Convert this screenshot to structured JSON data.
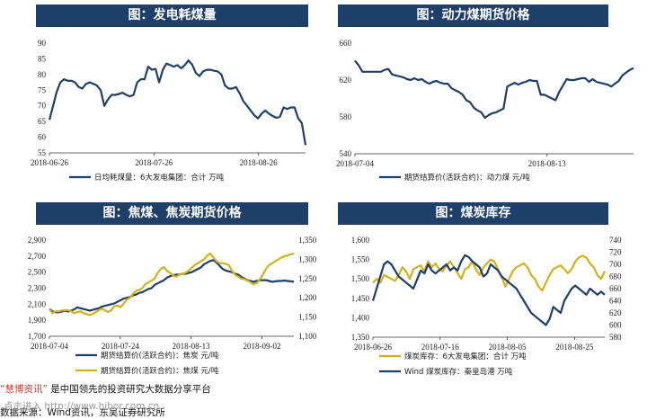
{
  "colors": {
    "navy": "#1f3f6b",
    "gold": "#d4b11a",
    "title_bg": "#1f3f6b"
  },
  "footer": {
    "brand": "“慧博资讯”",
    "text": " 是中国领先的投资研究大数据分享平台",
    "line2": "数据来源：Wind资讯，东吴证券研究所",
    "overlay": "点击进入 http://www.hibor.com.cn"
  },
  "chart_data": [
    {
      "type": "line",
      "title": "图：发电耗煤量",
      "x_ticks": [
        "2018-06-26",
        "2018-07-26",
        "2018-08-26"
      ],
      "y_ticks": [
        "55",
        "60",
        "65",
        "70",
        "75",
        "80",
        "85",
        "90"
      ],
      "ylim": [
        55,
        90
      ],
      "series": [
        {
          "name": "日均耗煤量：6大发电集团：合计  万吨",
          "color": "#1f3f6b",
          "axis": "left",
          "values": [
            65.5,
            70,
            74.5,
            77.5,
            78.5,
            78,
            78,
            77.5,
            76,
            75.5,
            77,
            77.5,
            77,
            76.5,
            75,
            70,
            72,
            73.5,
            73.5,
            73.8,
            74.2,
            73.5,
            73,
            73.5,
            77.5,
            78.5,
            78.5,
            82.5,
            81.5,
            81.8,
            77.5,
            81.5,
            83.5,
            83,
            82.5,
            83,
            82,
            83,
            84.5,
            83.2,
            80.5,
            79.5,
            81,
            81.5,
            81.5,
            81.2,
            81,
            80,
            76.5,
            75.5,
            75.5,
            76,
            74,
            71.5,
            70,
            68.5,
            67,
            66,
            67.5,
            68.5,
            67.5,
            66.8,
            66.2,
            66.5,
            69.5,
            69,
            69.5,
            69.5,
            66,
            64.5,
            57.5
          ]
        }
      ],
      "legend": [
        "日均耗煤量：6大发电集团：合计  万吨"
      ]
    },
    {
      "type": "line",
      "title": "图：动力煤期货价格",
      "x_ticks": [
        "2018-07-04",
        "2018-08-13"
      ],
      "y_ticks": [
        "540",
        "580",
        "620",
        "660"
      ],
      "ylim": [
        540,
        660
      ],
      "series": [
        {
          "name": "期货结算价(活跃合约)：动力煤  元/吨",
          "color": "#1f3f6b",
          "axis": "left",
          "values": [
            641,
            636,
            629,
            629,
            629,
            629,
            629,
            629,
            631,
            632,
            626,
            625,
            624,
            623,
            621,
            620,
            622,
            620,
            621,
            618,
            616,
            618,
            619,
            617,
            616,
            616,
            611,
            609,
            607,
            604,
            598,
            596,
            590,
            587,
            585,
            579,
            582,
            584,
            585,
            587,
            589,
            613,
            615,
            617,
            615,
            617,
            618,
            620,
            619,
            619,
            604,
            604,
            602,
            600,
            598,
            607,
            614,
            621,
            620,
            620,
            621,
            622,
            622,
            618,
            621,
            618,
            617,
            616,
            615,
            613,
            616,
            619,
            625,
            628,
            631,
            633
          ]
        }
      ],
      "legend": [
        "期货结算价(活跃合约)：动力煤  元/吨"
      ]
    },
    {
      "type": "line",
      "title": "图：焦煤、焦炭期货价格",
      "x_ticks": [
        "2018-07-04",
        "2018-07-24",
        "2018-08-13",
        "2018-09-02"
      ],
      "y_ticks_left": [
        "1,700",
        "1,900",
        "2,100",
        "2,300",
        "2,500",
        "2,700",
        "2,900"
      ],
      "y_ticks_right": [
        "1,100",
        "1,150",
        "1,200",
        "1,250",
        "1,300",
        "1,350"
      ],
      "ylim_left": [
        1700,
        2900
      ],
      "ylim_right": [
        1100,
        1350
      ],
      "series": [
        {
          "name": "期货结算价(活跃合约)：焦炭  元/吨",
          "color": "#1f3f6b",
          "axis": "left",
          "values": [
            2040,
            2010,
            2000,
            2000,
            2010,
            2020,
            2010,
            2020,
            2035,
            2060,
            2050,
            2040,
            2030,
            2020,
            2030,
            2040,
            2050,
            2070,
            2080,
            2090,
            2100,
            2110,
            2130,
            2150,
            2170,
            2180,
            2190,
            2210,
            2220,
            2240,
            2250,
            2270,
            2290,
            2300,
            2340,
            2360,
            2380,
            2400,
            2430,
            2450,
            2460,
            2470,
            2470,
            2480,
            2480,
            2490,
            2500,
            2520,
            2540,
            2560,
            2600,
            2620,
            2640,
            2650,
            2620,
            2580,
            2540,
            2520,
            2510,
            2500,
            2480,
            2470,
            2440,
            2420,
            2400,
            2390,
            2380,
            2390,
            2400,
            2400,
            2400,
            2390,
            2380,
            2385,
            2390,
            2390,
            2395,
            2390,
            2385,
            2380
          ]
        },
        {
          "name": "期货结算价(活跃合约)：焦煤  元/吨",
          "color": "#d4b11a",
          "axis": "right",
          "values": [
            1170,
            1160,
            1165,
            1165,
            1167,
            1168,
            1168,
            1165,
            1160,
            1163,
            1165,
            1160,
            1158,
            1155,
            1158,
            1163,
            1168,
            1172,
            1167,
            1163,
            1168,
            1178,
            1180,
            1176,
            1185,
            1195,
            1200,
            1210,
            1218,
            1220,
            1225,
            1235,
            1240,
            1245,
            1250,
            1265,
            1275,
            1280,
            1270,
            1265,
            1258,
            1255,
            1260,
            1262,
            1265,
            1270,
            1278,
            1285,
            1290,
            1295,
            1300,
            1310,
            1315,
            1305,
            1295,
            1290,
            1290,
            1288,
            1285,
            1270,
            1260,
            1255,
            1250,
            1248,
            1245,
            1240,
            1235,
            1238,
            1248,
            1260,
            1275,
            1285,
            1290,
            1295,
            1300,
            1305,
            1308,
            1310,
            1313,
            1315
          ]
        }
      ],
      "legend": [
        "期货结算价(活跃合约)：焦炭  元/吨",
        "期货结算价(活跃合约)：焦煤  元/吨"
      ]
    },
    {
      "type": "line",
      "title": "图：煤炭库存",
      "x_ticks": [
        "2018-06-26",
        "2018-07-16",
        "2018-08-05",
        "2018-08-25"
      ],
      "y_ticks_left": [
        "1,350",
        "1,400",
        "1,450",
        "1,500",
        "1,550",
        "1,600"
      ],
      "y_ticks_right": [
        "580",
        "600",
        "620",
        "640",
        "660",
        "680",
        "700",
        "720",
        "740"
      ],
      "ylim_left": [
        1350,
        1600
      ],
      "ylim_right": [
        580,
        740
      ],
      "series": [
        {
          "name": "煤炭库存：6大发电集团：合计  万吨",
          "color": "#d4b11a",
          "axis": "left",
          "values": [
            1490,
            1500,
            1490,
            1510,
            1505,
            1500,
            1495,
            1510,
            1530,
            1520,
            1500,
            1525,
            1530,
            1535,
            1520,
            1545,
            1530,
            1540,
            1525,
            1520,
            1535,
            1545,
            1530,
            1515,
            1500,
            1525,
            1530,
            1545,
            1525,
            1510,
            1530,
            1540,
            1550,
            1545,
            1525,
            1505,
            1480,
            1500,
            1520,
            1530,
            1535,
            1540,
            1530,
            1510,
            1500,
            1480,
            1470,
            1490,
            1510,
            1525,
            1530,
            1535,
            1525,
            1515,
            1525,
            1545,
            1555,
            1560,
            1555,
            1540,
            1530,
            1510,
            1500,
            1520
          ]
        },
        {
          "name": "Wind 煤炭库存：秦皇岛港  万吨",
          "color": "#1f3f6b",
          "axis": "right",
          "values": [
            640,
            660,
            680,
            700,
            705,
            700,
            690,
            680,
            675,
            670,
            665,
            660,
            675,
            690,
            685,
            700,
            690,
            685,
            690,
            695,
            700,
            690,
            695,
            690,
            705,
            715,
            712,
            705,
            700,
            695,
            680,
            685,
            700,
            695,
            690,
            680,
            675,
            670,
            665,
            660,
            650,
            640,
            630,
            620,
            615,
            610,
            605,
            600,
            610,
            630,
            625,
            620,
            640,
            650,
            660,
            665,
            660,
            655,
            650,
            660,
            655,
            650,
            655,
            650
          ]
        }
      ],
      "legend": [
        "煤炭库存：6大发电集团：合计  万吨",
        "Wind 煤炭库存：秦皇岛港  万吨"
      ]
    }
  ]
}
